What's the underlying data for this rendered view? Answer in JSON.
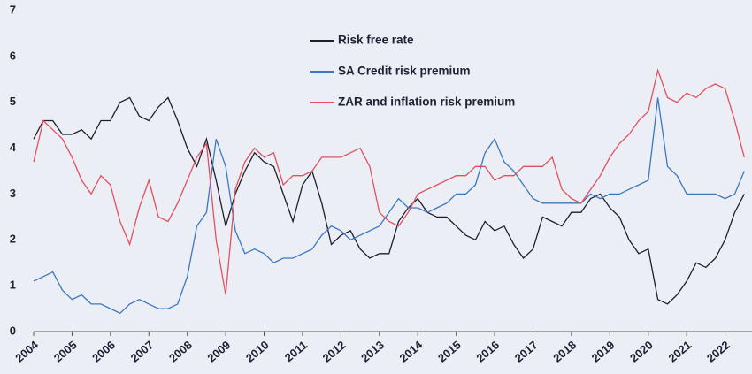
{
  "chart_data": {
    "type": "line",
    "x": [
      2004,
      2004.25,
      2004.5,
      2004.75,
      2005,
      2005.25,
      2005.5,
      2005.75,
      2006,
      2006.25,
      2006.5,
      2006.75,
      2007,
      2007.25,
      2007.5,
      2007.75,
      2008,
      2008.25,
      2008.5,
      2008.75,
      2009,
      2009.25,
      2009.5,
      2009.75,
      2010,
      2010.25,
      2010.5,
      2010.75,
      2011,
      2011.25,
      2011.5,
      2011.75,
      2012,
      2012.25,
      2012.5,
      2012.75,
      2013,
      2013.25,
      2013.5,
      2013.75,
      2014,
      2014.25,
      2014.5,
      2014.75,
      2015,
      2015.25,
      2015.5,
      2015.75,
      2016,
      2016.25,
      2016.5,
      2016.75,
      2017,
      2017.25,
      2017.5,
      2017.75,
      2018,
      2018.25,
      2018.5,
      2018.75,
      2019,
      2019.25,
      2019.5,
      2019.75,
      2020,
      2020.25,
      2020.5,
      2020.75,
      2021,
      2021.25,
      2021.5,
      2021.75,
      2022,
      2022.25,
      2022.5
    ],
    "series": [
      {
        "name": "Risk free rate",
        "color": "#1e1e2c",
        "values": [
          4.2,
          4.6,
          4.6,
          4.3,
          4.3,
          4.4,
          4.2,
          4.6,
          4.6,
          5.0,
          5.1,
          4.7,
          4.6,
          4.9,
          5.1,
          4.6,
          4.0,
          3.6,
          4.2,
          3.3,
          2.3,
          3.0,
          3.5,
          3.9,
          3.7,
          3.6,
          3.0,
          2.4,
          3.2,
          3.5,
          2.8,
          1.9,
          2.1,
          2.2,
          1.8,
          1.6,
          1.7,
          1.7,
          2.4,
          2.7,
          2.9,
          2.6,
          2.5,
          2.5,
          2.3,
          2.1,
          2.0,
          2.4,
          2.2,
          2.3,
          1.9,
          1.6,
          1.8,
          2.5,
          2.4,
          2.3,
          2.6,
          2.6,
          2.9,
          3.0,
          2.7,
          2.5,
          2.0,
          1.7,
          1.8,
          0.7,
          0.6,
          0.8,
          1.1,
          1.5,
          1.4,
          1.6,
          2.0,
          2.6,
          3.0
        ]
      },
      {
        "name": "SA Credit risk premium",
        "color": "#3a78bf",
        "values": [
          1.1,
          1.2,
          1.3,
          0.9,
          0.7,
          0.8,
          0.6,
          0.6,
          0.5,
          0.4,
          0.6,
          0.7,
          0.6,
          0.5,
          0.5,
          0.6,
          1.2,
          2.3,
          2.6,
          4.2,
          3.6,
          2.2,
          1.7,
          1.8,
          1.7,
          1.5,
          1.6,
          1.6,
          1.7,
          1.8,
          2.1,
          2.3,
          2.2,
          2.0,
          2.1,
          2.2,
          2.3,
          2.6,
          2.9,
          2.7,
          2.7,
          2.6,
          2.7,
          2.8,
          3.0,
          3.0,
          3.2,
          3.9,
          4.2,
          3.7,
          3.5,
          3.2,
          2.9,
          2.8,
          2.8,
          2.8,
          2.8,
          2.8,
          3.0,
          2.9,
          3.0,
          3.0,
          3.1,
          3.2,
          3.3,
          5.1,
          3.6,
          3.4,
          3.0,
          3.0,
          3.0,
          3.0,
          2.9,
          3.0,
          3.5
        ]
      },
      {
        "name": "ZAR and inflation risk premium",
        "color": "#e2505f",
        "values": [
          3.7,
          4.6,
          4.4,
          4.2,
          3.8,
          3.3,
          3.0,
          3.4,
          3.2,
          2.4,
          1.9,
          2.7,
          3.3,
          2.5,
          2.4,
          2.8,
          3.3,
          3.8,
          4.1,
          2.0,
          0.8,
          3.1,
          3.7,
          4.0,
          3.8,
          3.9,
          3.2,
          3.4,
          3.4,
          3.5,
          3.8,
          3.8,
          3.8,
          3.9,
          4.0,
          3.6,
          2.6,
          2.4,
          2.3,
          2.6,
          3.0,
          3.1,
          3.2,
          3.3,
          3.4,
          3.4,
          3.6,
          3.6,
          3.3,
          3.4,
          3.4,
          3.6,
          3.6,
          3.6,
          3.8,
          3.1,
          2.9,
          2.8,
          3.1,
          3.4,
          3.8,
          4.1,
          4.3,
          4.6,
          4.8,
          5.7,
          5.1,
          5.0,
          5.2,
          5.1,
          5.3,
          5.4,
          5.3,
          4.6,
          3.8
        ]
      }
    ],
    "xlim": [
      2004,
      2022.7
    ],
    "ylim": [
      0,
      7
    ],
    "xticks": [
      2004,
      2005,
      2006,
      2007,
      2008,
      2009,
      2010,
      2011,
      2012,
      2013,
      2014,
      2015,
      2016,
      2017,
      2018,
      2019,
      2020,
      2021,
      2022
    ],
    "yticks": [
      0,
      1,
      2,
      3,
      4,
      5,
      6,
      7
    ]
  }
}
